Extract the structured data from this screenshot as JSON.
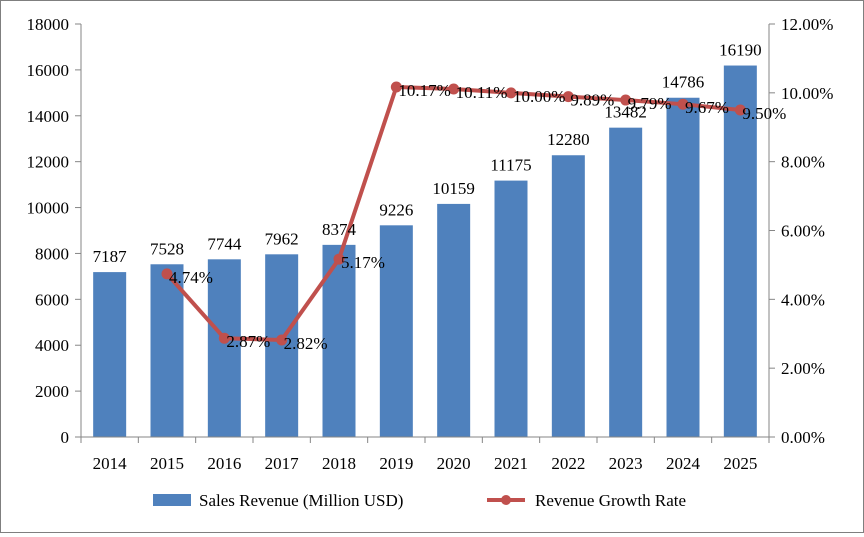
{
  "chart_data": {
    "type": "bar+line",
    "title": "",
    "categories": [
      "2014",
      "2015",
      "2016",
      "2017",
      "2018",
      "2019",
      "2020",
      "2021",
      "2022",
      "2023",
      "2024",
      "2025"
    ],
    "series": [
      {
        "name": "Sales Revenue (Million USD)",
        "type": "bar",
        "axis": "left",
        "color": "#4f81bd",
        "values": [
          7187,
          7528,
          7744,
          7962,
          8374,
          9226,
          10159,
          11175,
          12280,
          13482,
          14786,
          16190
        ],
        "labels": [
          "7187",
          "7528",
          "7744",
          "7962",
          "8374",
          "9226",
          "10159",
          "11175",
          "12280",
          "13482",
          "14786",
          "16190"
        ]
      },
      {
        "name": "Revenue Growth Rate",
        "type": "line",
        "axis": "right",
        "color": "#c0504d",
        "values": [
          null,
          4.74,
          2.87,
          2.82,
          5.17,
          10.17,
          10.11,
          10.0,
          9.89,
          9.79,
          9.67,
          9.5
        ],
        "labels": [
          null,
          "4.74%",
          "2.87%",
          "2.82%",
          "5.17%",
          "10.17%",
          "10.11%",
          "10.00%",
          "9.89%",
          "9.79%",
          "9.67%",
          "9.50%"
        ]
      }
    ],
    "y_left": {
      "min": 0,
      "max": 18000,
      "ticks": [
        0,
        2000,
        4000,
        6000,
        8000,
        10000,
        12000,
        14000,
        16000,
        18000
      ],
      "tick_labels": [
        "0",
        "2000",
        "4000",
        "6000",
        "8000",
        "10000",
        "12000",
        "14000",
        "16000",
        "18000"
      ]
    },
    "y_right": {
      "min": 0,
      "max": 12,
      "ticks": [
        0,
        2,
        4,
        6,
        8,
        10,
        12
      ],
      "tick_labels": [
        "0.00%",
        "2.00%",
        "4.00%",
        "6.00%",
        "8.00%",
        "10.00%",
        "12.00%"
      ]
    },
    "grid": false,
    "legend": {
      "position": "bottom",
      "entries": [
        "Sales Revenue (Million USD)",
        "Revenue Growth Rate"
      ]
    }
  }
}
